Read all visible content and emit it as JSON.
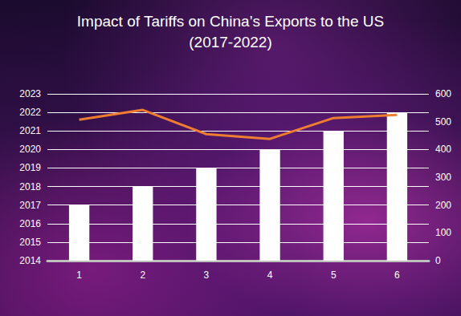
{
  "chart_data": {
    "type": "bar",
    "title": "Impact of Tariffs on China’s Exports to the US\n(2017-2022)",
    "categories": [
      "1",
      "2",
      "3",
      "4",
      "5",
      "6"
    ],
    "series": [
      {
        "type": "bar",
        "color": "#ffffff",
        "values": [
          2017,
          2018,
          2019,
          2020,
          2021,
          2022
        ]
      },
      {
        "type": "line",
        "color": "#ed7d31",
        "axis": "y2",
        "marker": "none",
        "values": [
          507,
          542,
          455,
          438,
          513,
          524
        ]
      }
    ],
    "ylim": [
      2014,
      2023
    ],
    "yticks": [
      2014,
      2015,
      2016,
      2017,
      2018,
      2019,
      2020,
      2021,
      2022,
      2023
    ],
    "y2lim": [
      0,
      600
    ],
    "y2ticks": [
      0,
      100,
      200,
      300,
      400,
      500,
      600
    ],
    "grid": true
  }
}
